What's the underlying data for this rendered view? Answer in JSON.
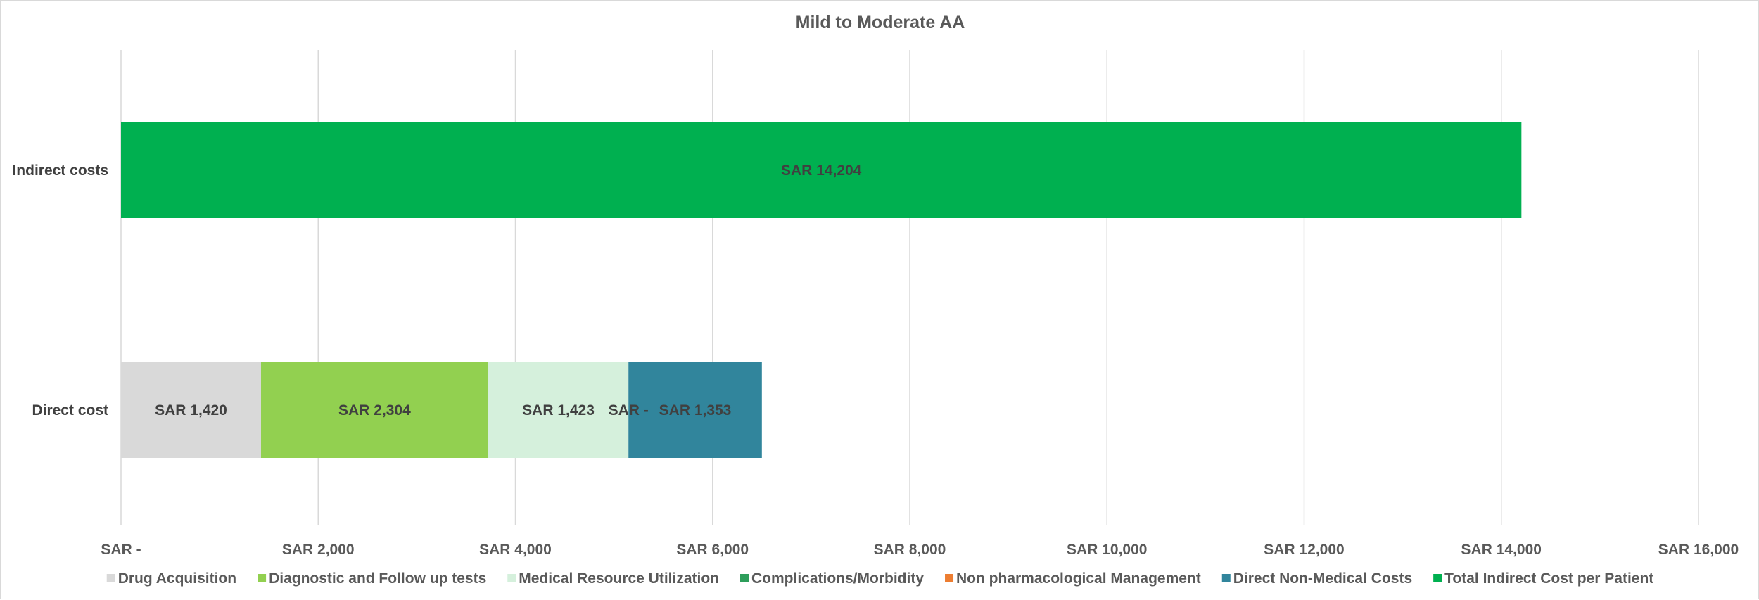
{
  "chart_data": {
    "type": "bar",
    "orientation": "horizontal",
    "stacked": true,
    "title": "Mild to Moderate AA",
    "categories": [
      "Indirect costs",
      "Direct cost"
    ],
    "xlim": [
      0,
      16000
    ],
    "x_ticks": [
      0,
      2000,
      4000,
      6000,
      8000,
      10000,
      12000,
      14000,
      16000
    ],
    "x_tick_labels": [
      "SAR -",
      "SAR 2,000",
      "SAR 4,000",
      "SAR 6,000",
      "SAR 8,000",
      "SAR 10,000",
      "SAR 12,000",
      "SAR 14,000",
      "SAR 16,000"
    ],
    "grid": "vertical",
    "legend_position": "bottom",
    "series": [
      {
        "name": "Drug Acquisition",
        "color": "#d9d9d9",
        "values": [
          null,
          1420
        ],
        "labels": [
          "",
          "SAR 1,420"
        ]
      },
      {
        "name": "Diagnostic and Follow up tests",
        "color": "#92d050",
        "values": [
          null,
          2304
        ],
        "labels": [
          "",
          "SAR 2,304"
        ]
      },
      {
        "name": "Medical Resource Utilization",
        "color": "#d5f0dc",
        "values": [
          null,
          1423
        ],
        "labels": [
          "",
          "SAR 1,423"
        ]
      },
      {
        "name": "Complications/Morbidity",
        "color": "#2e9e5b",
        "values": [
          null,
          0
        ],
        "labels": [
          "",
          "SAR -"
        ]
      },
      {
        "name": "Non pharmacological Management",
        "color": "#ed7d31",
        "values": [
          null,
          null
        ],
        "labels": [
          "",
          ""
        ]
      },
      {
        "name": "Direct Non-Medical Costs",
        "color": "#31859c",
        "values": [
          null,
          1353
        ],
        "labels": [
          "",
          "SAR 1,353"
        ]
      },
      {
        "name": "Total Indirect Cost per Patient",
        "color": "#00b050",
        "values": [
          14204,
          null
        ],
        "labels": [
          "SAR 14,204",
          ""
        ]
      }
    ]
  }
}
